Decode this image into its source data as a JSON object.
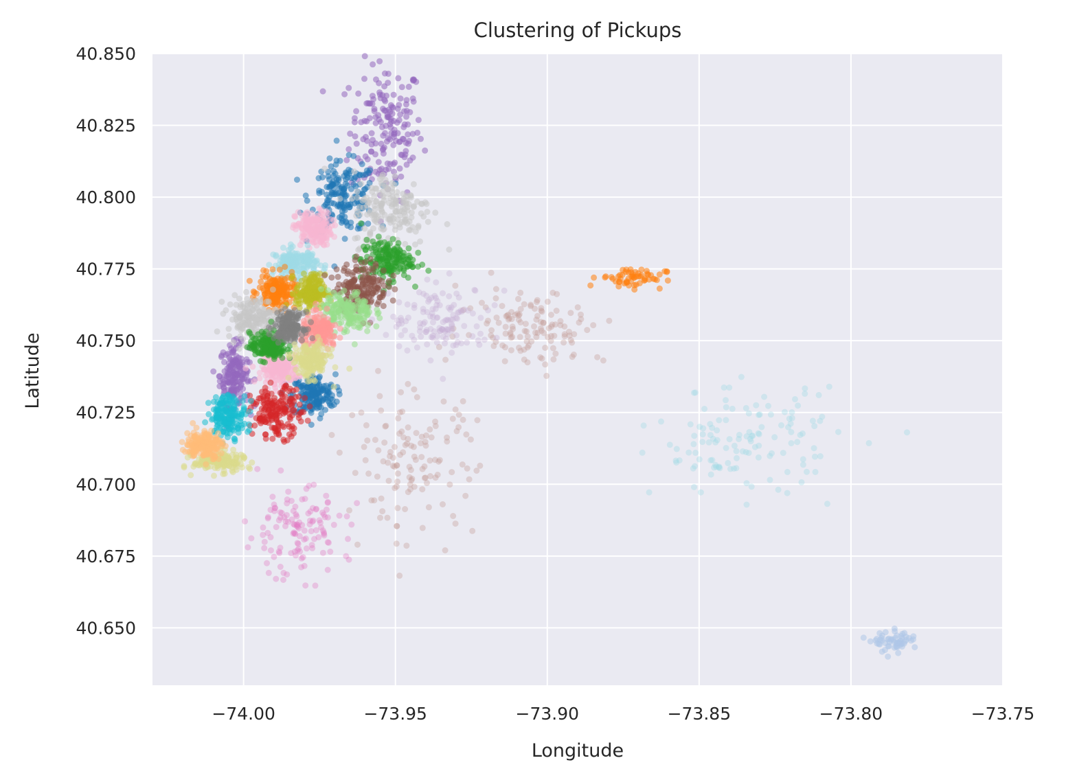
{
  "chart_data": {
    "type": "scatter",
    "title": "Clustering of Pickups",
    "xlabel": "Longitude",
    "ylabel": "Latitude",
    "xlim": [
      -74.03,
      -73.75
    ],
    "ylim": [
      40.63,
      40.85
    ],
    "xticks": [
      -74.0,
      -73.95,
      -73.9,
      -73.85,
      -73.8,
      -73.75
    ],
    "xtick_labels": [
      "−74.00",
      "−73.95",
      "−73.90",
      "−73.85",
      "−73.80",
      "−73.75"
    ],
    "yticks": [
      40.65,
      40.675,
      40.7,
      40.725,
      40.75,
      40.775,
      40.8,
      40.825,
      40.85
    ],
    "ytick_labels": [
      "40.650",
      "40.675",
      "40.700",
      "40.725",
      "40.750",
      "40.775",
      "40.800",
      "40.825",
      "40.850"
    ],
    "grid": true,
    "background": "#eaeaf2",
    "legend": "none",
    "colormap": "tab20",
    "clusters": [
      {
        "color": "#9467bd",
        "center": [
          -73.953,
          40.823
        ],
        "spread": [
          0.01,
          0.02
        ],
        "density": "dense"
      },
      {
        "color": "#9467bd",
        "center": [
          -74.003,
          40.738
        ],
        "spread": [
          0.004,
          0.009
        ],
        "density": "dense"
      },
      {
        "color": "#1f77b4",
        "center": [
          -73.967,
          40.8
        ],
        "spread": [
          0.009,
          0.01
        ],
        "density": "dense"
      },
      {
        "color": "#1f77b4",
        "center": [
          -73.977,
          40.731
        ],
        "spread": [
          0.006,
          0.006
        ],
        "density": "dense"
      },
      {
        "color": "#f7b6d2",
        "center": [
          -73.977,
          40.789
        ],
        "spread": [
          0.005,
          0.005
        ],
        "density": "dense"
      },
      {
        "color": "#f7b6d2",
        "center": [
          -73.988,
          40.74
        ],
        "spread": [
          0.005,
          0.004
        ],
        "density": "dense"
      },
      {
        "color": "#9edae5",
        "center": [
          -73.983,
          40.777
        ],
        "spread": [
          0.006,
          0.004
        ],
        "density": "dense"
      },
      {
        "color": "#ff7f0e",
        "center": [
          -73.989,
          40.767
        ],
        "spread": [
          0.005,
          0.005
        ],
        "density": "dense"
      },
      {
        "color": "#ff7f0e",
        "center": [
          -73.872,
          40.772
        ],
        "spread": [
          0.009,
          0.003
        ],
        "density": "medium"
      },
      {
        "color": "#bcbd22",
        "center": [
          -73.978,
          40.767
        ],
        "spread": [
          0.004,
          0.005
        ],
        "density": "dense"
      },
      {
        "color": "#c7c7c7",
        "center": [
          -73.951,
          40.796
        ],
        "spread": [
          0.011,
          0.011
        ],
        "density": "dense"
      },
      {
        "color": "#c7c7c7",
        "center": [
          -73.997,
          40.758
        ],
        "spread": [
          0.007,
          0.006
        ],
        "density": "dense"
      },
      {
        "color": "#2ca02c",
        "center": [
          -73.953,
          40.778
        ],
        "spread": [
          0.007,
          0.006
        ],
        "density": "dense"
      },
      {
        "color": "#2ca02c",
        "center": [
          -73.992,
          40.748
        ],
        "spread": [
          0.005,
          0.004
        ],
        "density": "dense"
      },
      {
        "color": "#8c564b",
        "center": [
          -73.961,
          40.769
        ],
        "spread": [
          0.007,
          0.007
        ],
        "density": "dense"
      },
      {
        "color": "#98df8a",
        "center": [
          -73.966,
          40.76
        ],
        "spread": [
          0.007,
          0.006
        ],
        "density": "dense"
      },
      {
        "color": "#ff9896",
        "center": [
          -73.975,
          40.753
        ],
        "spread": [
          0.005,
          0.005
        ],
        "density": "dense"
      },
      {
        "color": "#7f7f7f",
        "center": [
          -73.985,
          40.755
        ],
        "spread": [
          0.004,
          0.004
        ],
        "density": "dense"
      },
      {
        "color": "#dbdb8d",
        "center": [
          -73.978,
          40.743
        ],
        "spread": [
          0.005,
          0.005
        ],
        "density": "dense"
      },
      {
        "color": "#dbdb8d",
        "center": [
          -74.008,
          40.708
        ],
        "spread": [
          0.007,
          0.003
        ],
        "density": "dense"
      },
      {
        "color": "#d62728",
        "center": [
          -73.989,
          40.725
        ],
        "spread": [
          0.007,
          0.007
        ],
        "density": "dense"
      },
      {
        "color": "#17becf",
        "center": [
          -74.005,
          40.724
        ],
        "spread": [
          0.005,
          0.006
        ],
        "density": "dense"
      },
      {
        "color": "#ffbb78",
        "center": [
          -74.013,
          40.714
        ],
        "spread": [
          0.005,
          0.004
        ],
        "density": "dense"
      },
      {
        "color": "#e377c2",
        "center": [
          -73.983,
          40.683
        ],
        "spread": [
          0.014,
          0.013
        ],
        "density": "sparse"
      },
      {
        "color": "#c49c94",
        "center": [
          -73.945,
          40.708
        ],
        "spread": [
          0.018,
          0.02
        ],
        "density": "sparse"
      },
      {
        "color": "#c49c94",
        "center": [
          -73.905,
          40.755
        ],
        "spread": [
          0.02,
          0.011
        ],
        "density": "sparse"
      },
      {
        "color": "#c5b0d5",
        "center": [
          -73.935,
          40.757
        ],
        "spread": [
          0.014,
          0.01
        ],
        "density": "sparse"
      },
      {
        "color": "#aec7e8",
        "center": [
          -73.785,
          40.645
        ],
        "spread": [
          0.006,
          0.003
        ],
        "density": "medium"
      },
      {
        "color": "#9edae5",
        "center": [
          -73.835,
          40.715
        ],
        "spread": [
          0.025,
          0.015
        ],
        "density": "sparse"
      }
    ]
  }
}
